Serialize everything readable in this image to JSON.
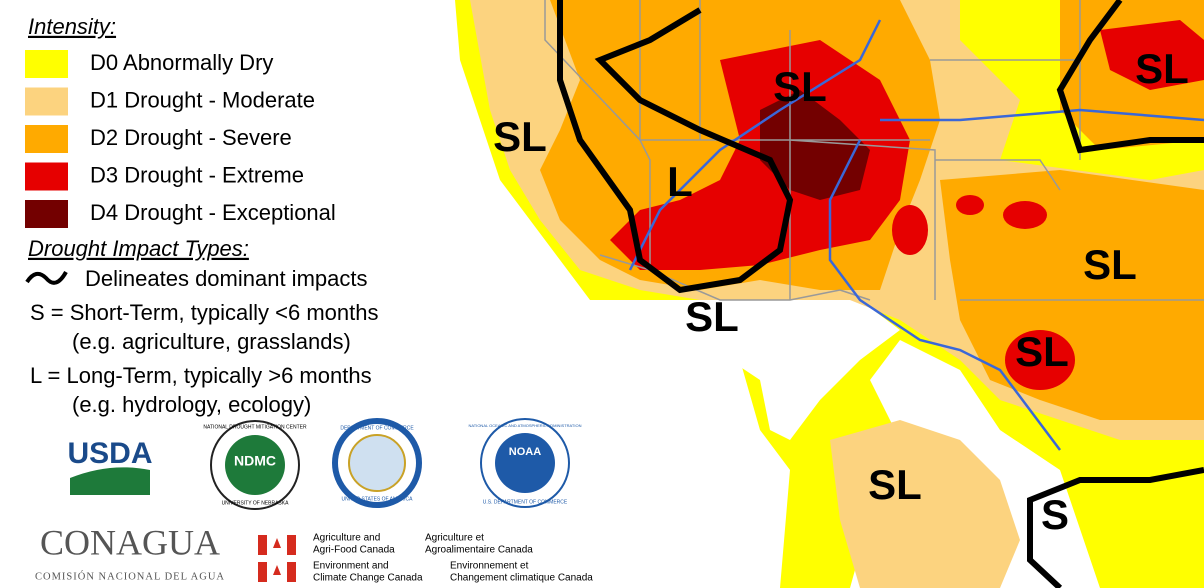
{
  "legend": {
    "title": "Intensity:",
    "items": [
      {
        "label": "D0 Abnormally Dry",
        "color": "#ffff00"
      },
      {
        "label": "D1 Drought - Moderate",
        "color": "#fcd37f"
      },
      {
        "label": "D2 Drought - Severe",
        "color": "#ffaa00"
      },
      {
        "label": "D3 Drought - Extreme",
        "color": "#e60000"
      },
      {
        "label": "D4 Drought - Exceptional",
        "color": "#730000"
      }
    ]
  },
  "impacts": {
    "title": "Drought Impact Types:",
    "delineates": "Delineates dominant impacts",
    "short": "S = Short-Term, typically <6 months",
    "short_examples": "(e.g. agriculture, grasslands)",
    "long": "L = Long-Term, typically >6 months",
    "long_examples": "(e.g. hydrology, ecology)"
  },
  "map_labels": [
    "SL",
    "SL",
    "L",
    "SL",
    "SL",
    "SL",
    "SL",
    "S",
    "SL"
  ],
  "logos": {
    "usda": "USDA",
    "ndmc": "NDMC",
    "ndmc_ring": "NATIONAL DROUGHT MITIGATION CENTER",
    "ndmc_bottom": "UNIVERSITY OF NEBRASKA",
    "commerce": "DEPARTMENT OF COMMERCE",
    "commerce_bottom": "UNITED STATES OF AMERICA",
    "noaa": "NOAA",
    "noaa_ring": "NATIONAL OCEANIC AND ATMOSPHERIC ADMINISTRATION",
    "noaa_bottom": "U.S. DEPARTMENT OF COMMERCE",
    "conagua": "CONAGUA",
    "conagua_sub": "COMISIÓN NACIONAL DEL AGUA",
    "canada": [
      "Agriculture and",
      "Agri-Food Canada",
      "Agriculture et",
      "Agroalimentaire Canada",
      "Environment and",
      "Climate Change Canada",
      "Environnement et",
      "Changement climatique Canada"
    ]
  }
}
